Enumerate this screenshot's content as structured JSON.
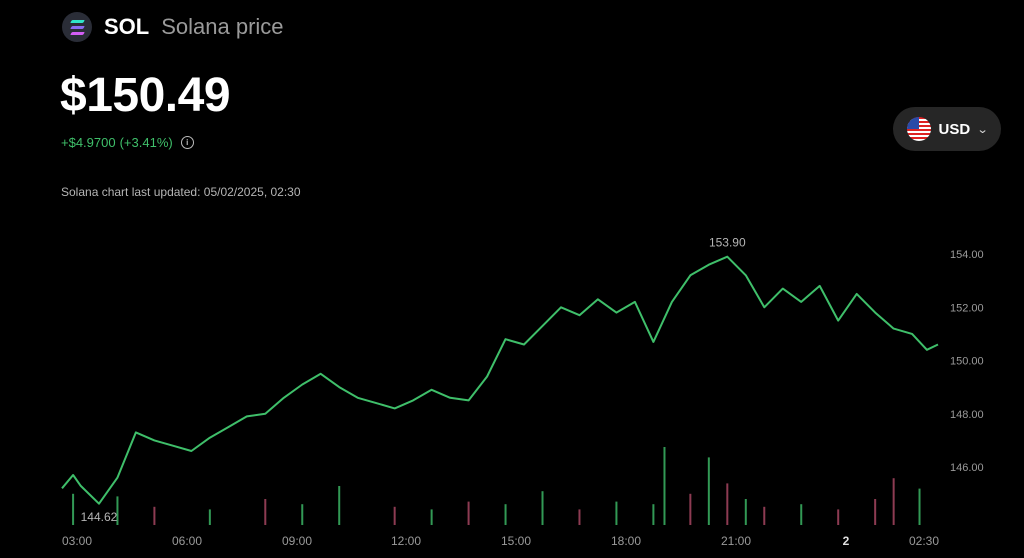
{
  "header": {
    "ticker": "SOL",
    "name": "Solana price",
    "logo_icon": "solana-logo-icon"
  },
  "price": {
    "value": "$150.49",
    "change": "+$4.9700",
    "change_pct": "(+3.41%)",
    "change_color": "#3fbf6a"
  },
  "updated_text": "Solana chart last updated: 05/02/2025, 02:30",
  "currency": {
    "label": "USD",
    "flag_icon": "us-flag-icon",
    "dropdown_icon": "chevron-down-icon"
  },
  "chart_data": {
    "type": "line",
    "title": "",
    "xlabel": "",
    "ylabel": "",
    "ylim": [
      144.0,
      154.5
    ],
    "y_ticks": [
      "146.00",
      "148.00",
      "150.00",
      "152.00",
      "154.00"
    ],
    "x_ticks": [
      "03:00",
      "06:00",
      "09:00",
      "12:00",
      "15:00",
      "18:00",
      "21:00",
      "2",
      "02:30"
    ],
    "line_color": "#3fbf6a",
    "annotations": {
      "high": "153.90",
      "low": "144.62"
    },
    "series": [
      {
        "x": [
          0,
          0.3,
          0.5,
          1,
          1.5,
          2,
          2.5,
          3,
          3.5,
          4,
          4.5,
          5,
          5.5,
          6,
          6.5,
          7,
          7.5,
          8,
          8.5,
          9,
          9.5,
          10,
          10.5,
          11,
          11.5,
          12,
          12.5,
          13,
          13.5,
          14,
          14.5,
          15,
          15.5,
          16,
          16.5,
          17,
          17.5,
          18,
          18.5,
          19,
          19.5,
          20,
          20.5,
          21,
          21.5,
          22,
          22.5,
          23,
          23.4,
          23.7
        ],
        "values": [
          145.2,
          145.7,
          145.3,
          144.62,
          145.6,
          147.3,
          147.0,
          146.8,
          146.6,
          147.1,
          147.5,
          147.9,
          148.0,
          148.6,
          149.1,
          149.5,
          149.0,
          148.6,
          148.4,
          148.2,
          148.5,
          148.9,
          148.6,
          148.5,
          149.4,
          150.8,
          150.6,
          151.3,
          152.0,
          151.7,
          152.3,
          151.8,
          152.2,
          150.7,
          152.2,
          153.2,
          153.6,
          153.9,
          153.2,
          152.0,
          152.7,
          152.2,
          152.8,
          151.5,
          152.5,
          151.8,
          151.2,
          151.0,
          150.4,
          150.6
        ]
      }
    ],
    "volume": {
      "x": [
        0.3,
        1.5,
        2.5,
        4,
        5.5,
        6.5,
        7.5,
        9,
        10,
        11,
        12,
        13,
        14,
        15,
        16,
        16.3,
        17,
        17.5,
        18,
        18.5,
        19,
        20,
        21,
        22,
        22.5,
        23.2
      ],
      "values": [
        1.2,
        1.1,
        0.7,
        0.6,
        1.0,
        0.8,
        1.5,
        0.7,
        0.6,
        0.9,
        0.8,
        1.3,
        0.6,
        0.9,
        0.8,
        3.0,
        1.2,
        2.6,
        1.6,
        1.0,
        0.7,
        0.8,
        0.6,
        1.0,
        1.8,
        1.4
      ],
      "colors": [
        "#3fbf6a",
        "#3fbf6a",
        "#b04a66",
        "#3fbf6a",
        "#b04a66",
        "#3fbf6a",
        "#3fbf6a",
        "#b04a66",
        "#3fbf6a",
        "#b04a66",
        "#3fbf6a",
        "#3fbf6a",
        "#b04a66",
        "#3fbf6a",
        "#3fbf6a",
        "#3fbf6a",
        "#b04a66",
        "#3fbf6a",
        "#b04a66",
        "#3fbf6a",
        "#b04a66",
        "#3fbf6a",
        "#b04a66",
        "#b04a66",
        "#b04a66",
        "#3fbf6a"
      ]
    }
  }
}
